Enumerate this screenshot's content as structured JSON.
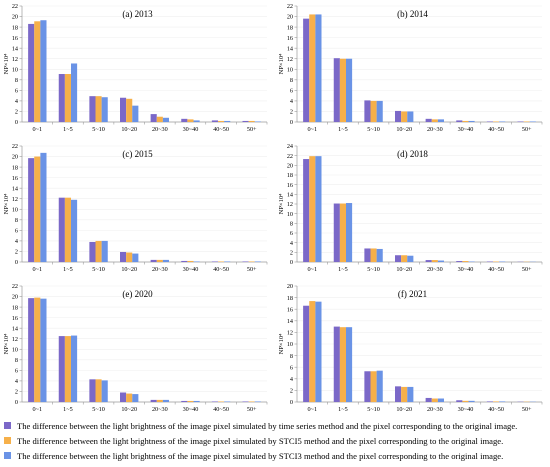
{
  "colors": {
    "series": [
      "#7b68c8",
      "#f6b04a",
      "#6a93e6"
    ],
    "axis": "#9a9a9a",
    "grid": "#efefef",
    "text": "#000000"
  },
  "legend": [
    "The difference between the light brightness of the image pixel simulated by time series method and the pixel corresponding to the original image.",
    "The difference between the light brightness of the image pixel simulated by STCI5 method and the pixel corresponding to the original image.",
    "The difference between the light brightness of the image pixel simulated by STCI3 method and the pixel corresponding to the original image."
  ],
  "chart_data": [
    {
      "type": "bar",
      "title": "(a) 2013",
      "ylabel": "NP×10⁴",
      "ylim": [
        0,
        22
      ],
      "yticks": [
        0,
        2,
        4,
        6,
        8,
        10,
        12,
        14,
        16,
        18,
        20,
        22
      ],
      "categories": [
        "0~1",
        "1~5",
        "5~10",
        "10~20",
        "20~30",
        "30~40",
        "40~50",
        "50+"
      ],
      "series": [
        {
          "values": [
            18.6,
            9.1,
            4.9,
            4.6,
            1.5,
            0.6,
            0.3,
            0.2
          ]
        },
        {
          "values": [
            19.1,
            9.1,
            4.9,
            4.4,
            1.0,
            0.5,
            0.2,
            0.2
          ]
        },
        {
          "values": [
            19.3,
            11.1,
            4.7,
            3.1,
            0.8,
            0.3,
            0.2,
            0.1
          ]
        }
      ]
    },
    {
      "type": "bar",
      "title": "(b) 2014",
      "ylabel": "NP×10⁴",
      "ylim": [
        0,
        22
      ],
      "yticks": [
        0,
        2,
        4,
        6,
        8,
        10,
        12,
        14,
        16,
        18,
        20,
        22
      ],
      "categories": [
        "0~1",
        "1~5",
        "5~10",
        "10~20",
        "20~30",
        "30~40",
        "40~50",
        "50+"
      ],
      "series": [
        {
          "values": [
            19.6,
            12.1,
            4.1,
            2.1,
            0.6,
            0.3,
            0.1,
            0.1
          ]
        },
        {
          "values": [
            20.4,
            12.0,
            4.0,
            2.0,
            0.5,
            0.2,
            0.1,
            0.1
          ]
        },
        {
          "values": [
            20.4,
            12.0,
            4.0,
            2.0,
            0.5,
            0.2,
            0.1,
            0.1
          ]
        }
      ]
    },
    {
      "type": "bar",
      "title": "(c) 2015",
      "ylabel": "NP×10⁴",
      "ylim": [
        0,
        22
      ],
      "yticks": [
        0,
        2,
        4,
        6,
        8,
        10,
        12,
        14,
        16,
        18,
        20,
        22
      ],
      "categories": [
        "0~1",
        "1~5",
        "5~10",
        "10~20",
        "20~30",
        "30~40",
        "40~50",
        "50+"
      ],
      "series": [
        {
          "values": [
            19.7,
            12.2,
            3.8,
            1.9,
            0.4,
            0.2,
            0.1,
            0.1
          ]
        },
        {
          "values": [
            20.0,
            12.2,
            4.0,
            1.8,
            0.4,
            0.2,
            0.1,
            0.1
          ]
        },
        {
          "values": [
            20.7,
            11.8,
            4.0,
            1.6,
            0.4,
            0.1,
            0.1,
            0.1
          ]
        }
      ]
    },
    {
      "type": "bar",
      "title": "(d) 2018",
      "ylabel": "NP×10⁴",
      "ylim": [
        0,
        24
      ],
      "yticks": [
        0,
        2,
        4,
        6,
        8,
        10,
        12,
        14,
        16,
        18,
        20,
        22,
        24
      ],
      "categories": [
        "0~1",
        "1~5",
        "5~10",
        "10~20",
        "20~30",
        "30~40",
        "40~50",
        "50+"
      ],
      "series": [
        {
          "values": [
            21.3,
            12.1,
            2.8,
            1.4,
            0.4,
            0.2,
            0.1,
            0.05
          ]
        },
        {
          "values": [
            21.9,
            12.1,
            2.8,
            1.4,
            0.4,
            0.2,
            0.1,
            0.05
          ]
        },
        {
          "values": [
            21.9,
            12.2,
            2.7,
            1.3,
            0.3,
            0.1,
            0.1,
            0.05
          ]
        }
      ]
    },
    {
      "type": "bar",
      "title": "(e) 2020",
      "ylabel": "NP×10⁴",
      "ylim": [
        0,
        22
      ],
      "yticks": [
        0,
        2,
        4,
        6,
        8,
        10,
        12,
        14,
        16,
        18,
        20,
        22
      ],
      "categories": [
        "0~1",
        "1~5",
        "5~10",
        "10~20",
        "20~30",
        "30~40",
        "40~50",
        "50+"
      ],
      "series": [
        {
          "values": [
            19.7,
            12.5,
            4.3,
            1.8,
            0.4,
            0.2,
            0.1,
            0.1
          ]
        },
        {
          "values": [
            19.8,
            12.5,
            4.3,
            1.6,
            0.4,
            0.2,
            0.1,
            0.1
          ]
        },
        {
          "values": [
            19.6,
            12.6,
            4.1,
            1.5,
            0.4,
            0.2,
            0.1,
            0.1
          ]
        }
      ]
    },
    {
      "type": "bar",
      "title": "(f) 2021",
      "ylabel": "NP×10⁴",
      "ylim": [
        0,
        20
      ],
      "yticks": [
        0,
        2,
        4,
        6,
        8,
        10,
        12,
        14,
        16,
        18,
        20
      ],
      "categories": [
        "0~1",
        "1~5",
        "5~10",
        "10~20",
        "20~30",
        "30~40",
        "40~50",
        "50+"
      ],
      "series": [
        {
          "values": [
            16.6,
            13.0,
            5.3,
            2.7,
            0.7,
            0.3,
            0.1,
            0.05
          ]
        },
        {
          "values": [
            17.4,
            12.9,
            5.3,
            2.6,
            0.6,
            0.2,
            0.1,
            0.05
          ]
        },
        {
          "values": [
            17.3,
            12.9,
            5.4,
            2.6,
            0.6,
            0.2,
            0.1,
            0.05
          ]
        }
      ]
    }
  ]
}
